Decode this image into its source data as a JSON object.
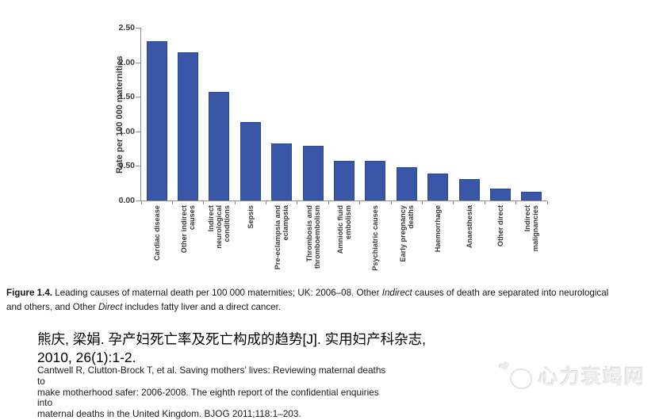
{
  "chart_data": {
    "type": "bar",
    "title": "",
    "ylabel": "Rate per 100 000 maternities",
    "xlabel": "",
    "ylim": [
      0,
      2.5
    ],
    "ytick_values": [
      0,
      0.5,
      1,
      1.5,
      2,
      2.5
    ],
    "yticks": [
      "0.00",
      "0.50",
      "1.00",
      "1.50",
      "2.00",
      "2.50"
    ],
    "grid": false,
    "legend": false,
    "bar_color": "#3a57a7",
    "categories": [
      "Cardiac disease",
      "Other indirect causes",
      "Indirect neurological conditions",
      "Sepsis",
      "Pre-eclampsia and eclampsia",
      "Thrombosis and thromboembolism",
      "Amniotic fluid embolism",
      "Psychiatric causes",
      "Early pregnancy deaths",
      "Haemorrhage",
      "Anaesthesia",
      "Other direct",
      "Indirect malignancies"
    ],
    "category_lines": [
      [
        "Cardiac disease"
      ],
      [
        "Other indirect",
        "causes"
      ],
      [
        "Indirect",
        "neurological",
        "conditions"
      ],
      [
        "Sepsis"
      ],
      [
        "Pre-eclampsia and",
        "eclampsia"
      ],
      [
        "Thrombosis and",
        "thromboembolism"
      ],
      [
        "Amniotic fluid",
        "embolism"
      ],
      [
        "Psychiatric causes"
      ],
      [
        "Early pregnancy",
        "deaths"
      ],
      [
        "Haemorrhage"
      ],
      [
        "Anaesthesia"
      ],
      [
        "Other direct"
      ],
      [
        "Indirect",
        "malignancies"
      ]
    ],
    "values": [
      2.31,
      2.14,
      1.57,
      1.13,
      0.83,
      0.79,
      0.57,
      0.57,
      0.48,
      0.39,
      0.31,
      0.17,
      0.13
    ]
  },
  "caption": {
    "label": "Figure 1.4.",
    "part1": " Leading causes of maternal death per 100 000 maternities; UK: 2006–08. Other ",
    "italic1": "Indirect",
    "part2": " causes of death are separated into neurological\nand others, and Other ",
    "italic2": "Direct",
    "part3": " includes fatty liver and a direct cancer."
  },
  "citation_cn": "熊庆, 梁娟. 孕产妇死亡率及死亡构成的趋势[J]. 实用妇产科杂志,\n2010, 26(1):1-2.",
  "citation_en": "Cantwell R, Clutton-Brock T, et al. Saving mothers’ lives: Reviewing maternal deaths to\nmake motherhood safer: 2006-2008. The eighth report of the confidential enquiries into\nmaternal deaths in the United Kingdom. BJOG 2011;118:1–203.",
  "watermark": {
    "text": "心力衰竭网",
    "icon": "heart-logo"
  }
}
